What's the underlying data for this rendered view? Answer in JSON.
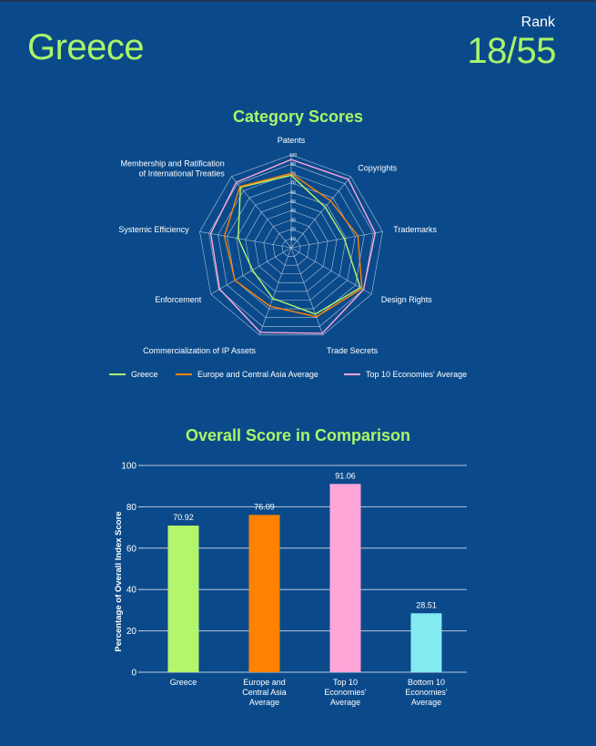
{
  "header": {
    "country": "Greece",
    "rank_label": "Rank",
    "rank_value": "18/55"
  },
  "colors": {
    "background": "#0b4a8a",
    "accent_green": "#a9f56a",
    "greece": "#b3f56b",
    "europe": "#ff8200",
    "top10": "#ffa6d9",
    "bottom10": "#84eaf2",
    "grid": "#c9d6e6"
  },
  "chart_data": [
    {
      "type": "radar",
      "title": "Category Scores",
      "axes": [
        "Patents",
        "Copyrights",
        "Trademarks",
        "Design Rights",
        "Trade Secrets",
        "Commercialization of IP Assets",
        "Enforcement",
        "Systemic Efficiency",
        "Membership and Ratification of International Treaties"
      ],
      "rlim": [
        0,
        100
      ],
      "rticks": [
        10,
        20,
        30,
        40,
        50,
        60,
        70,
        80,
        90,
        100
      ],
      "series": [
        {
          "name": "Greece",
          "values": [
            78,
            57,
            58,
            86,
            76,
            58,
            48,
            58,
            85
          ]
        },
        {
          "name": "Europe and Central Asia Average",
          "values": [
            80,
            66,
            73,
            88,
            79,
            67,
            70,
            73,
            86
          ]
        },
        {
          "name": "Top 10 Economies' Average",
          "values": [
            95,
            96,
            92,
            90,
            98,
            97,
            89,
            88,
            92
          ]
        }
      ],
      "legend": "bottom"
    },
    {
      "type": "bar",
      "title": "Overall Score in Comparison",
      "categories": [
        [
          "Greece"
        ],
        [
          "Europe and",
          "Central Asia",
          "Average"
        ],
        [
          "Top 10",
          "Economies'",
          "Average"
        ],
        [
          "Bottom 10",
          "Economies'",
          "Average"
        ]
      ],
      "values": [
        70.92,
        76.09,
        91.06,
        28.51
      ],
      "value_labels": [
        "70.92",
        "76.09",
        "91.06",
        "28.51"
      ],
      "ylabel": "Percentage of Overall Index Score",
      "ylim": [
        0,
        100
      ],
      "yticks": [
        0,
        20,
        40,
        60,
        80,
        100
      ],
      "grid": true
    }
  ]
}
